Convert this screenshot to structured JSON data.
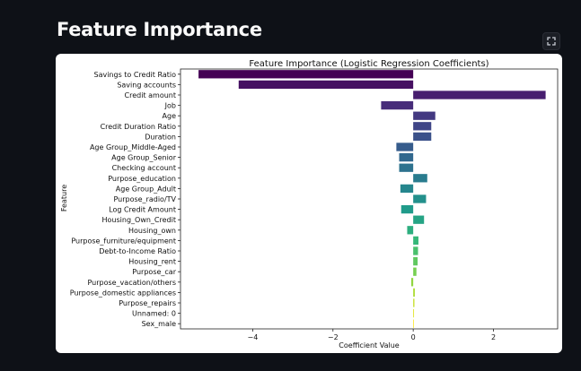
{
  "page": {
    "title": "Feature Importance",
    "fullscreen_icon": "expand-icon"
  },
  "chart_data": {
    "type": "bar",
    "orientation": "horizontal",
    "title": "Feature Importance (Logistic Regression Coefficients)",
    "xlabel": "Coefficient Value",
    "ylabel": "Feature",
    "xlim": [
      -5.8,
      3.6
    ],
    "xticks": [
      -4,
      -2,
      0,
      2
    ],
    "grid": false,
    "palette": "viridis",
    "categories": [
      "Savings to Credit Ratio",
      "Saving accounts",
      "Credit amount",
      "Job",
      "Age",
      "Credit Duration Ratio",
      "Duration",
      "Age Group_Middle-Aged",
      "Age Group_Senior",
      "Checking account",
      "Purpose_education",
      "Age Group_Adult",
      "Purpose_radio/TV",
      "Log Credit Amount",
      "Housing_Own_Credit",
      "Housing_own",
      "Purpose_furniture/equipment",
      "Debt-to-Income Ratio",
      "Housing_rent",
      "Purpose_car",
      "Purpose_vacation/others",
      "Purpose_domestic appliances",
      "Purpose_repairs",
      "Unnamed: 0",
      "Sex_male"
    ],
    "values": [
      -5.35,
      -4.35,
      3.3,
      -0.8,
      0.55,
      0.45,
      0.45,
      -0.42,
      -0.35,
      -0.35,
      0.35,
      -0.32,
      0.32,
      -0.3,
      0.27,
      -0.15,
      0.13,
      0.12,
      0.11,
      0.08,
      -0.05,
      0.04,
      0.03,
      0.02,
      0.01
    ]
  }
}
